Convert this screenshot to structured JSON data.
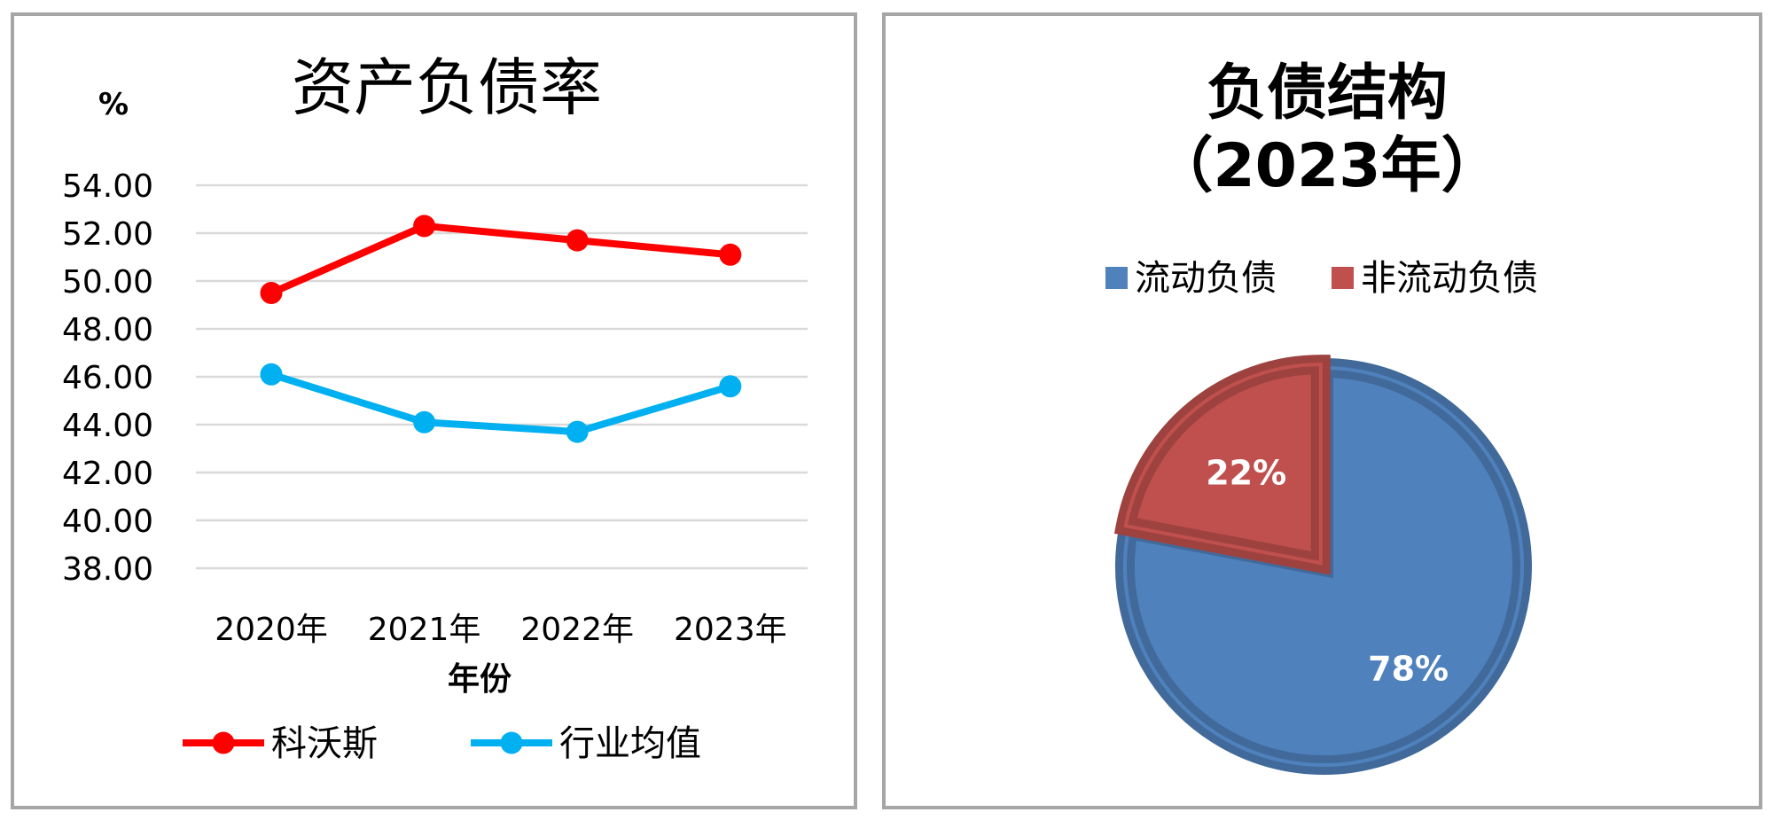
{
  "chart_data": [
    {
      "type": "line",
      "title": "资产负债率",
      "unit_label": "%",
      "xlabel": "年份",
      "ylabel": "",
      "categories": [
        "2020年",
        "2021年",
        "2022年",
        "2023年"
      ],
      "ylim": [
        38,
        54
      ],
      "ytick_step": 2,
      "yticks": [
        "38.00",
        "40.00",
        "42.00",
        "44.00",
        "46.00",
        "48.00",
        "50.00",
        "52.00",
        "54.00"
      ],
      "grid": true,
      "legend_position": "bottom",
      "series": [
        {
          "name": "科沃斯",
          "color": "#ff0000",
          "values": [
            49.5,
            52.3,
            51.7,
            51.1
          ]
        },
        {
          "name": "行业均值",
          "color": "#00b0f0",
          "values": [
            46.1,
            44.1,
            43.7,
            45.6
          ]
        }
      ]
    },
    {
      "type": "pie",
      "title_line1": "负债结构",
      "title_line2": "（2023年）",
      "legend_position": "top",
      "slices": [
        {
          "name": "流动负债",
          "value": 78,
          "label": "78%",
          "color": "#4f81bd"
        },
        {
          "name": "非流动负债",
          "value": 22,
          "label": "22%",
          "color": "#c0504d"
        }
      ]
    }
  ]
}
